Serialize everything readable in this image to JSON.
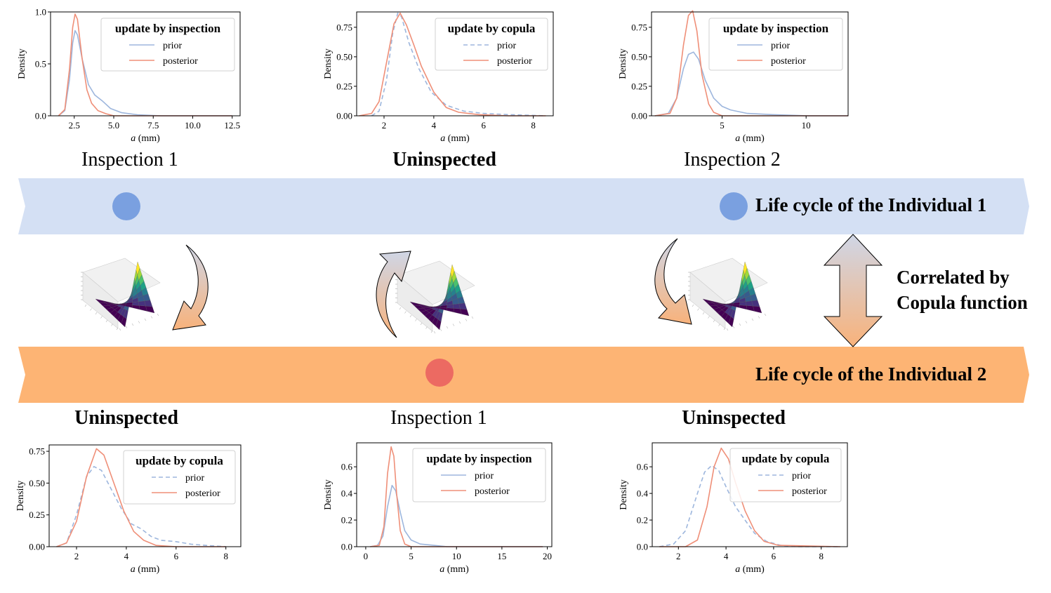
{
  "colors": {
    "band1": "#d4e0f4",
    "band2": "#fdb474",
    "dot1": "#7aa0e0",
    "dot2": "#ec6a62",
    "prior": "#9db6dd",
    "posterior": "#ef8f78",
    "arrow_top": "#cfd6e6",
    "arrow_bottom": "#f8b27b"
  },
  "individual1": {
    "title": "Life cycle of the Individual 1",
    "stages": [
      {
        "label": "Inspection 1",
        "bold": false
      },
      {
        "label": "Uninspected",
        "bold": true
      },
      {
        "label": "Inspection 2",
        "bold": false
      }
    ]
  },
  "individual2": {
    "title": "Life cycle of the Individual 2",
    "stages": [
      {
        "label": "Uninspected",
        "bold": true
      },
      {
        "label": "Inspection 1",
        "bold": false
      },
      {
        "label": "Uninspected",
        "bold": true
      }
    ]
  },
  "correlation": {
    "line1": "Correlated by",
    "line2": "Copula function"
  },
  "icons": {
    "copula_surface": "copula-surface-3d-plot-icon",
    "curved_arrow": "curved-arrow-icon",
    "double_arrow": "vertical-double-arrow-icon",
    "event_dot": "event-dot-icon"
  },
  "chart_data": [
    {
      "type": "line",
      "legend_title": "update by inspection",
      "xlabel_italic": "a",
      "xlabel_unit": " (mm)",
      "ylabel": "Density",
      "xlim": [
        1.0,
        13.0
      ],
      "ylim": [
        0,
        1.0
      ],
      "xticks": [
        2.5,
        5.0,
        7.5,
        10.0,
        12.5
      ],
      "yticks": [
        0.0,
        0.5,
        1.0
      ],
      "xtick_labels": [
        "2.5",
        "5.0",
        "7.5",
        "10.0",
        "12.5"
      ],
      "ytick_labels": [
        "0.0",
        "0.5",
        "1.0"
      ],
      "legend_position": "top-right",
      "series": [
        {
          "name": "prior",
          "style": "solid",
          "x": [
            1.5,
            1.9,
            2.2,
            2.4,
            2.55,
            2.7,
            3.0,
            3.4,
            3.8,
            4.3,
            4.8,
            5.5,
            6.5,
            8.0,
            10.0,
            12.5
          ],
          "y": [
            0.0,
            0.05,
            0.35,
            0.7,
            0.82,
            0.78,
            0.55,
            0.3,
            0.2,
            0.14,
            0.07,
            0.03,
            0.01,
            0.0,
            0.0,
            0.0
          ]
        },
        {
          "name": "posterior",
          "style": "solid",
          "x": [
            1.5,
            1.9,
            2.2,
            2.4,
            2.55,
            2.7,
            3.0,
            3.3,
            3.6,
            4.0,
            4.5,
            5.0,
            6.0,
            12.5
          ],
          "y": [
            0.0,
            0.06,
            0.45,
            0.85,
            0.98,
            0.93,
            0.55,
            0.25,
            0.12,
            0.05,
            0.02,
            0.0,
            0.0,
            0.0
          ]
        }
      ]
    },
    {
      "type": "line",
      "legend_title": "update by copula",
      "xlabel_italic": "a",
      "xlabel_unit": " (mm)",
      "ylabel": "Density",
      "xlim": [
        0.9,
        8.8
      ],
      "ylim": [
        0,
        0.88
      ],
      "xticks": [
        2,
        4,
        6,
        8
      ],
      "yticks": [
        0.0,
        0.25,
        0.5,
        0.75
      ],
      "xtick_labels": [
        "2",
        "4",
        "6",
        "8"
      ],
      "ytick_labels": [
        "0.00",
        "0.25",
        "0.50",
        "0.75"
      ],
      "legend_position": "top-right",
      "series": [
        {
          "name": "prior",
          "style": "dashed",
          "x": [
            1.5,
            1.8,
            2.1,
            2.35,
            2.55,
            2.7,
            3.0,
            3.4,
            3.9,
            4.5,
            5.2,
            6.0,
            7.0,
            8.5
          ],
          "y": [
            0.0,
            0.04,
            0.3,
            0.7,
            0.87,
            0.84,
            0.62,
            0.4,
            0.2,
            0.09,
            0.04,
            0.02,
            0.01,
            0.0
          ]
        },
        {
          "name": "posterior",
          "style": "solid",
          "x": [
            1.0,
            1.5,
            1.8,
            2.1,
            2.4,
            2.65,
            2.9,
            3.2,
            3.5,
            4.0,
            4.5,
            5.0,
            5.8,
            7.0,
            8.5
          ],
          "y": [
            0.0,
            0.02,
            0.12,
            0.45,
            0.78,
            0.87,
            0.77,
            0.6,
            0.42,
            0.2,
            0.07,
            0.03,
            0.01,
            0.0,
            0.0
          ]
        }
      ]
    },
    {
      "type": "line",
      "legend_title": "update by inspection",
      "xlabel_italic": "a",
      "xlabel_unit": " (mm)",
      "ylabel": "Density",
      "xlim": [
        0.8,
        12.5
      ],
      "ylim": [
        0,
        0.88
      ],
      "xticks": [
        5,
        10
      ],
      "yticks": [
        0.0,
        0.25,
        0.5,
        0.75
      ],
      "xtick_labels": [
        "5",
        "10"
      ],
      "ytick_labels": [
        "0.00",
        "0.25",
        "0.50",
        "0.75"
      ],
      "legend_position": "top-right",
      "series": [
        {
          "name": "prior",
          "style": "solid",
          "x": [
            1.0,
            1.8,
            2.3,
            2.7,
            3.0,
            3.3,
            3.6,
            4.0,
            4.5,
            5.0,
            5.5,
            6.5,
            8.0,
            10.0,
            12.5
          ],
          "y": [
            0.0,
            0.02,
            0.15,
            0.4,
            0.52,
            0.54,
            0.48,
            0.3,
            0.15,
            0.08,
            0.05,
            0.02,
            0.01,
            0.0,
            0.0
          ]
        },
        {
          "name": "posterior",
          "style": "solid",
          "x": [
            1.0,
            1.9,
            2.3,
            2.7,
            3.0,
            3.25,
            3.5,
            3.8,
            4.2,
            4.5,
            5.0,
            12.5
          ],
          "y": [
            0.0,
            0.02,
            0.15,
            0.6,
            0.85,
            0.89,
            0.72,
            0.35,
            0.1,
            0.03,
            0.0,
            0.0
          ]
        }
      ]
    },
    {
      "type": "line",
      "legend_title": "update by copula",
      "xlabel_italic": "a",
      "xlabel_unit": " (mm)",
      "ylabel": "Density",
      "xlim": [
        0.9,
        8.6
      ],
      "ylim": [
        0,
        0.8
      ],
      "xticks": [
        2,
        4,
        6,
        8
      ],
      "yticks": [
        0.0,
        0.25,
        0.5,
        0.75
      ],
      "xtick_labels": [
        "2",
        "4",
        "6",
        "8"
      ],
      "ytick_labels": [
        "0.00",
        "0.25",
        "0.50",
        "0.75"
      ],
      "legend_position": "top-right",
      "series": [
        {
          "name": "prior",
          "style": "dashed",
          "x": [
            1.2,
            1.6,
            2.0,
            2.4,
            2.7,
            3.0,
            3.4,
            3.8,
            4.2,
            4.6,
            5.0,
            5.4,
            6.0,
            6.6,
            7.2,
            8.0
          ],
          "y": [
            0.0,
            0.03,
            0.25,
            0.55,
            0.63,
            0.6,
            0.45,
            0.3,
            0.18,
            0.14,
            0.08,
            0.05,
            0.04,
            0.02,
            0.01,
            0.0
          ]
        },
        {
          "name": "posterior",
          "style": "solid",
          "x": [
            1.2,
            1.6,
            2.0,
            2.4,
            2.8,
            3.1,
            3.5,
            3.9,
            4.3,
            4.7,
            5.2,
            6.0,
            8.0
          ],
          "y": [
            0.0,
            0.03,
            0.2,
            0.55,
            0.77,
            0.72,
            0.5,
            0.28,
            0.12,
            0.05,
            0.01,
            0.0,
            0.0
          ]
        }
      ]
    },
    {
      "type": "line",
      "legend_title": "update by inspection",
      "xlabel_italic": "a",
      "xlabel_unit": " (mm)",
      "ylabel": "Density",
      "xlim": [
        -1.0,
        20.5
      ],
      "ylim": [
        0,
        0.78
      ],
      "xticks": [
        0,
        5,
        10,
        15,
        20
      ],
      "yticks": [
        0.0,
        0.2,
        0.4,
        0.6
      ],
      "xtick_labels": [
        "0",
        "5",
        "10",
        "15",
        "20"
      ],
      "ytick_labels": [
        "0.0",
        "0.2",
        "0.4",
        "0.6"
      ],
      "legend_position": "top-right",
      "series": [
        {
          "name": "prior",
          "style": "solid",
          "x": [
            0.5,
            1.3,
            1.9,
            2.4,
            2.9,
            3.3,
            3.8,
            4.3,
            5.0,
            6.0,
            7.5,
            9.0,
            11.0,
            14.0,
            19.5
          ],
          "y": [
            0.0,
            0.01,
            0.08,
            0.3,
            0.46,
            0.42,
            0.26,
            0.12,
            0.05,
            0.02,
            0.01,
            0.0,
            0.0,
            0.0,
            0.0
          ]
        },
        {
          "name": "posterior",
          "style": "solid",
          "x": [
            0.5,
            1.5,
            2.0,
            2.4,
            2.8,
            3.1,
            3.4,
            3.8,
            4.3,
            5.0,
            19.5
          ],
          "y": [
            0.0,
            0.01,
            0.15,
            0.55,
            0.75,
            0.68,
            0.4,
            0.12,
            0.02,
            0.0,
            0.0
          ]
        }
      ]
    },
    {
      "type": "line",
      "legend_title": "update by copula",
      "xlabel_italic": "a",
      "xlabel_unit": " (mm)",
      "ylabel": "Density",
      "xlim": [
        0.9,
        9.1
      ],
      "ylim": [
        0,
        0.78
      ],
      "xticks": [
        2,
        4,
        6,
        8
      ],
      "yticks": [
        0.0,
        0.2,
        0.4,
        0.6
      ],
      "xtick_labels": [
        "2",
        "4",
        "6",
        "8"
      ],
      "ytick_labels": [
        "0.0",
        "0.2",
        "0.4",
        "0.6"
      ],
      "legend_position": "top-right",
      "series": [
        {
          "name": "prior",
          "style": "dashed",
          "x": [
            1.2,
            1.8,
            2.3,
            2.8,
            3.1,
            3.4,
            3.7,
            4.0,
            4.4,
            4.8,
            5.2,
            5.7,
            6.3,
            7.0,
            8.8
          ],
          "y": [
            0.0,
            0.02,
            0.12,
            0.4,
            0.56,
            0.61,
            0.57,
            0.45,
            0.3,
            0.2,
            0.1,
            0.04,
            0.01,
            0.0,
            0.0
          ]
        },
        {
          "name": "posterior",
          "style": "solid",
          "x": [
            1.2,
            2.3,
            2.8,
            3.2,
            3.5,
            3.8,
            4.1,
            4.4,
            4.8,
            5.2,
            5.6,
            6.2,
            8.8
          ],
          "y": [
            0.0,
            0.0,
            0.05,
            0.3,
            0.6,
            0.74,
            0.66,
            0.48,
            0.27,
            0.12,
            0.04,
            0.01,
            0.0
          ]
        }
      ]
    }
  ]
}
